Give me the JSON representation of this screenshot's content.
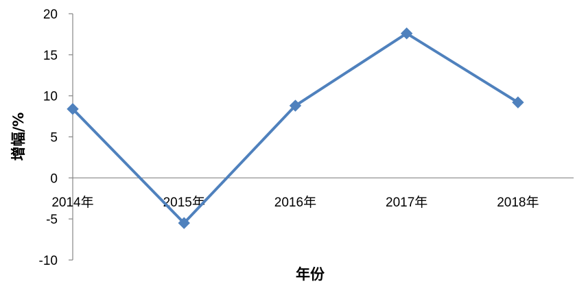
{
  "chart_data": {
    "type": "line",
    "categories": [
      "2014年",
      "2015年",
      "2016年",
      "2017年",
      "2018年"
    ],
    "series": [
      {
        "values": [
          8.4,
          -5.5,
          8.8,
          17.6,
          9.2
        ]
      }
    ],
    "xlabel": "年份",
    "ylabel": "增幅/%",
    "ylim": [
      -10,
      20
    ],
    "yticks": [
      "-10",
      "-5",
      "0",
      "5",
      "10",
      "15",
      "20"
    ],
    "grid": false,
    "legend": "none",
    "colors": {
      "series": "#4F81BD",
      "axis": "#868686"
    }
  }
}
